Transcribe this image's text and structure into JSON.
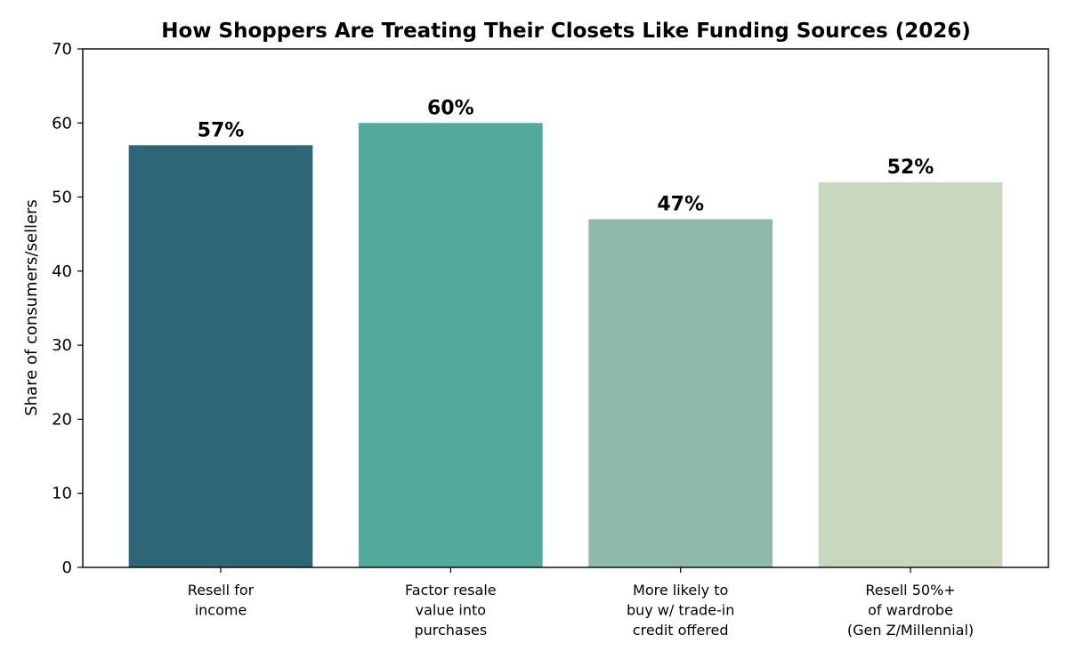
{
  "chart_data": {
    "type": "bar",
    "title": "How Shoppers Are Treating Their Closets Like Funding Sources (2026)",
    "xlabel": "",
    "ylabel": "Share of consumers/sellers",
    "ylim": [
      0,
      70
    ],
    "yticks": [
      0,
      10,
      20,
      30,
      40,
      50,
      60,
      70
    ],
    "grid": false,
    "legend": "none",
    "categories": [
      [
        "Resell for",
        "income"
      ],
      [
        "Factor resale",
        "value into",
        "purchases"
      ],
      [
        "More likely to",
        "buy w/ trade-in",
        "credit offered"
      ],
      [
        "Resell 50%+",
        "of wardrobe",
        "(Gen Z/Millennial)"
      ]
    ],
    "values": [
      57,
      60,
      47,
      52
    ],
    "value_labels": [
      "57%",
      "60%",
      "47%",
      "52%"
    ],
    "colors": [
      "#2d6676",
      "#52ab9a",
      "#8fb9a8",
      "#c8d8be"
    ]
  }
}
